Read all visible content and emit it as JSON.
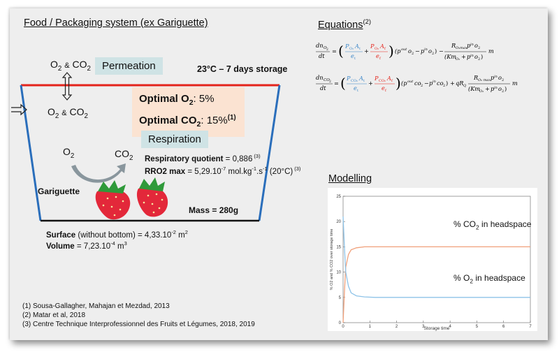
{
  "left": {
    "title": "Food / Packaging system (ex Gariguette)",
    "gas_top_o2": "O",
    "gas_top_amp": "&",
    "gas_top_co2": "CO",
    "permeation": "Permeation",
    "storage": "23°C – 7 days storage",
    "optimal_o2_prefix": "Optimal O",
    "optimal_o2_value": ": 5%",
    "optimal_co2_prefix": "Optimal CO",
    "optimal_co2_value": ": 15%",
    "optimal_co2_ref": "(1)",
    "respiration": "Respiration",
    "resp_o2": "O",
    "resp_co2": "CO",
    "rq_label": "Respiratory quotient",
    "rq_value": " = 0,886",
    "rq_ref": " (3)",
    "rro2_label": "RRO2 max",
    "rro2_value": " = 5,29.10",
    "rro2_exp": "-7",
    "rro2_unit": " mol.kg",
    "rro2_unit_exp1": "-1",
    "rro2_unit2": ".s",
    "rro2_unit_exp2": "-1",
    "rro2_temp": " (20°C)",
    "rro2_ref": " (3)",
    "gariguette": "Gariguette",
    "mass": "Mass = 280g",
    "surface_label": "Surface",
    "surface_rest": " (without bottom) = 4,33.10",
    "surface_exp": "-2",
    "surface_unit": " m",
    "surface_unit_exp": "2",
    "volume_label": "Volume",
    "volume_rest": " = 7,23.10",
    "volume_exp": "-4",
    "volume_unit": " m",
    "volume_unit_exp": "3",
    "gas_left_o2": "O",
    "gas_left_amp": "&",
    "gas_left_co2": "CO"
  },
  "references": [
    "(1) Sousa-Gallagher, Mahajan et Mezdad, 2013",
    "(2) Matar et al, 2018",
    "(3) Centre Technique Interprofessionnel des Fruits et Légumes, 2018, 2019"
  ],
  "equations": {
    "title": "Equations",
    "title_ref": "(2)"
  },
  "modelling": {
    "title": "Modelling",
    "label_co2": "% CO",
    "label_co2_rest": " in headspace",
    "label_o2": "% O",
    "label_o2_rest": " in headspace"
  },
  "colors": {
    "slide_bg": "#eeeeee",
    "lid_red": "#e4231b",
    "wall_blue": "#2a6ebb",
    "permeation_bg": "#cfe3e5",
    "optimal_bg": "#fbe3d2",
    "co2_curve": "#f0a07a",
    "o2_curve": "#8ec3e8"
  },
  "chart_data": {
    "type": "line",
    "title": "",
    "xlabel": "Storage time",
    "ylabel": "% O2 and % CO2 over storage time",
    "xlim": [
      0,
      7
    ],
    "ylim": [
      0,
      25
    ],
    "x_ticks": [
      0,
      1,
      2,
      3,
      4,
      5,
      6,
      7
    ],
    "y_ticks": [
      0,
      5,
      10,
      15,
      20,
      25
    ],
    "series": [
      {
        "name": "% CO2 in headspace",
        "color": "#f0a07a",
        "x": [
          0,
          0.05,
          0.1,
          0.2,
          0.3,
          0.5,
          0.8,
          1.2,
          2,
          3,
          4,
          5,
          6,
          7
        ],
        "y": [
          0,
          6,
          11,
          13.5,
          14.4,
          14.8,
          15,
          15,
          15,
          15,
          15,
          15,
          15,
          15
        ]
      },
      {
        "name": "% O2 in headspace",
        "color": "#8ec3e8",
        "x": [
          0,
          0.05,
          0.1,
          0.2,
          0.3,
          0.5,
          0.8,
          1.2,
          2,
          3,
          4,
          5,
          6,
          7
        ],
        "y": [
          21,
          15,
          10,
          7.2,
          5.9,
          5.3,
          5.1,
          5,
          5,
          5,
          5,
          5,
          5,
          5
        ]
      }
    ]
  }
}
